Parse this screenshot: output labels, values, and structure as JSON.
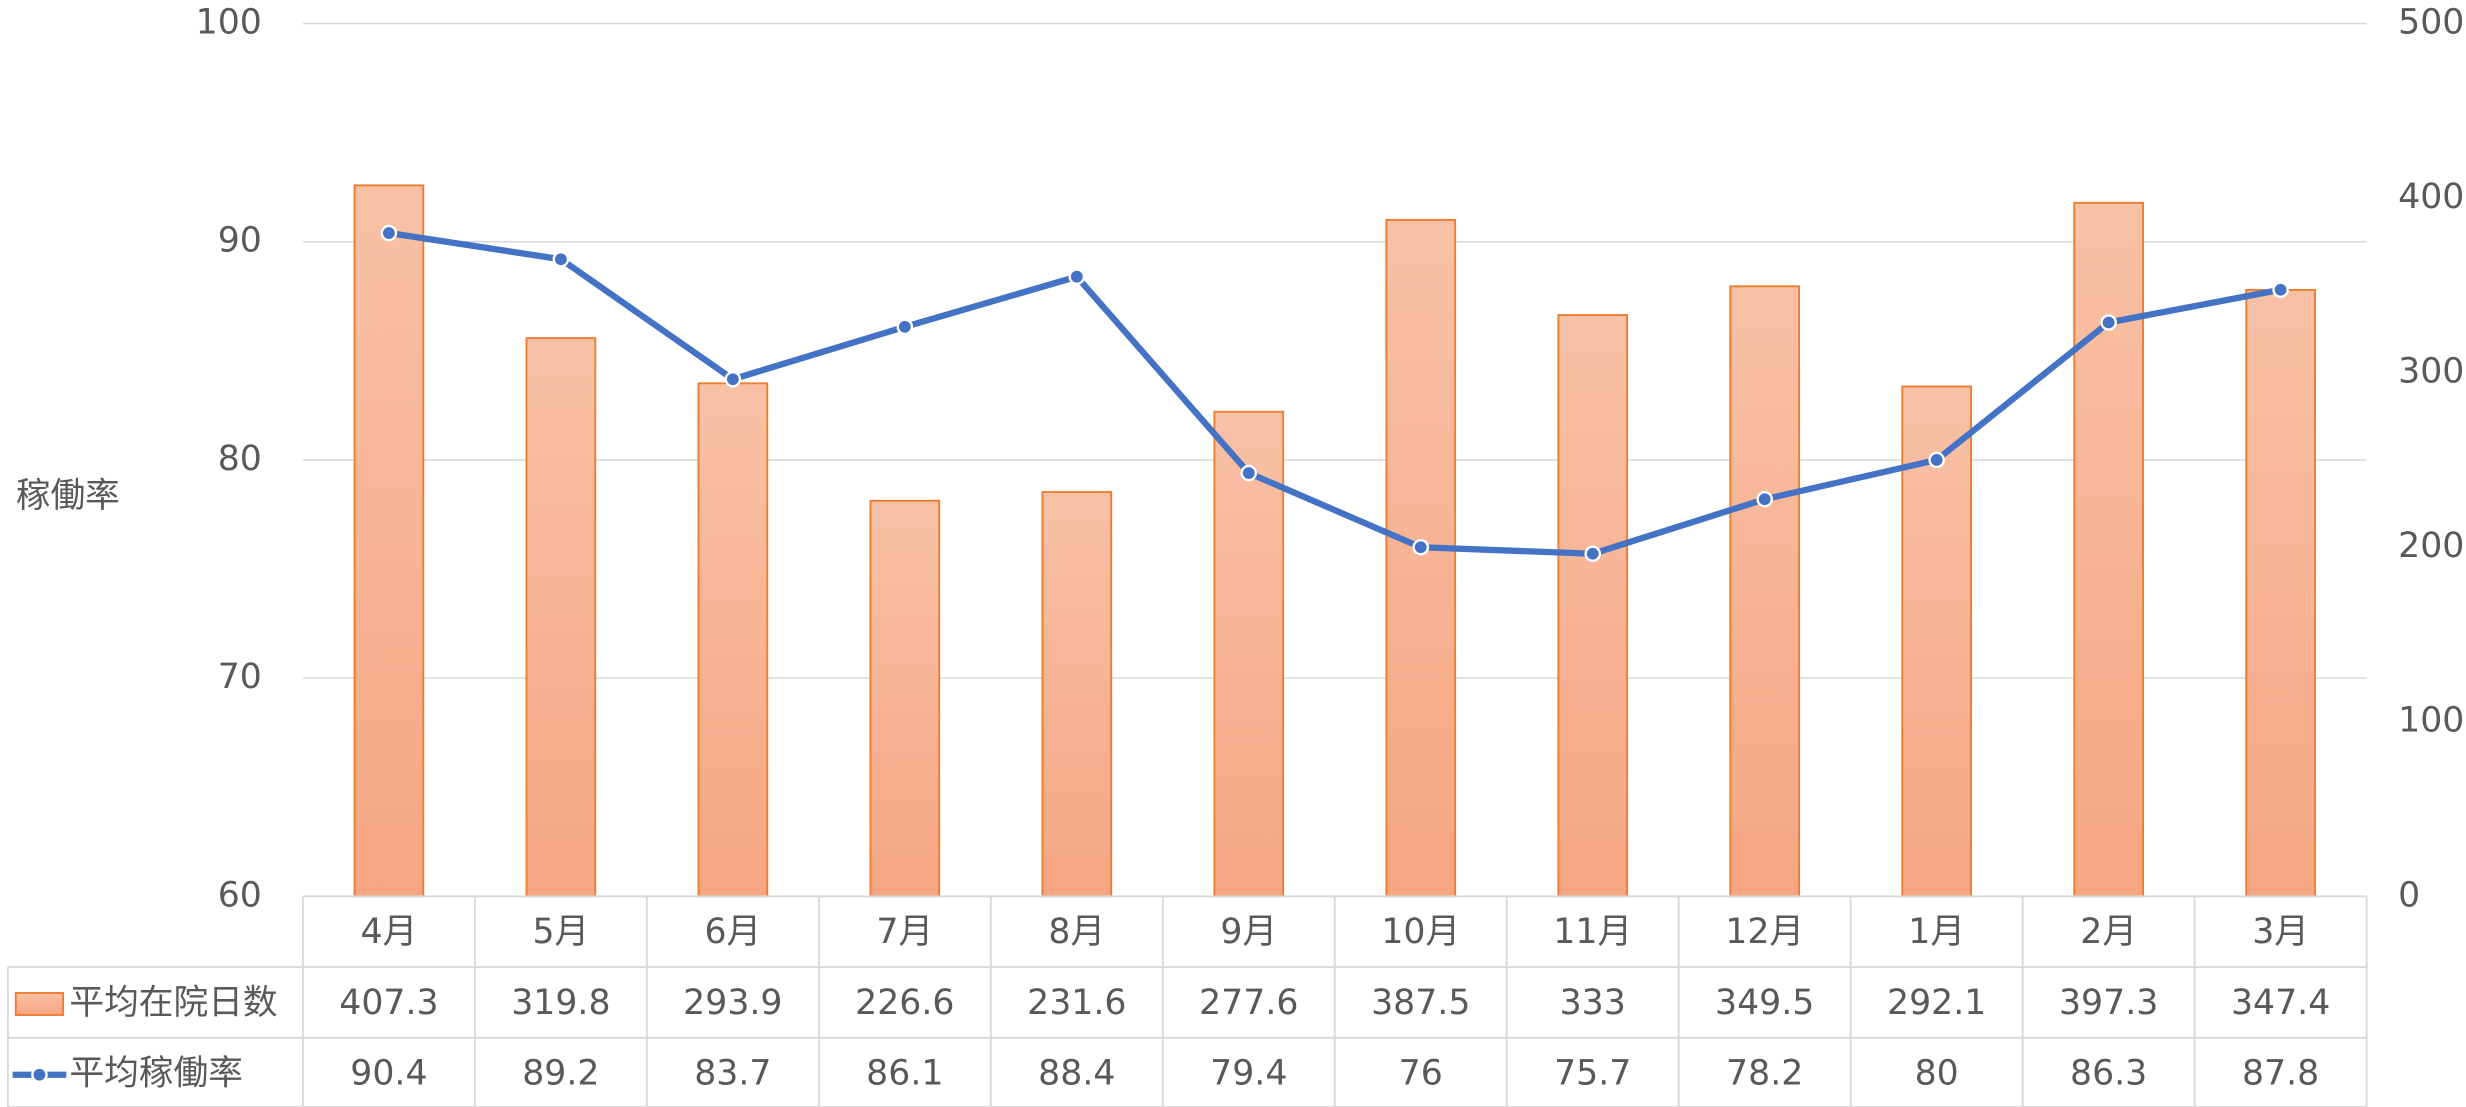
{
  "chart_data": {
    "type": "combo",
    "ylabel": "稼働率",
    "categories": [
      "4月",
      "5月",
      "6月",
      "7月",
      "8月",
      "9月",
      "10月",
      "11月",
      "12月",
      "1月",
      "2月",
      "3月"
    ],
    "series": [
      {
        "name": "平均在院日数",
        "type": "bar",
        "axis": "y2",
        "color": "#ED7D31",
        "values": [
          407.3,
          319.8,
          293.9,
          226.6,
          231.6,
          277.6,
          387.5,
          333,
          349.5,
          292.1,
          397.3,
          347.4
        ]
      },
      {
        "name": "平均稼働率",
        "type": "line",
        "color": "#4472C4",
        "values": [
          90.4,
          89.2,
          83.7,
          86.1,
          88.4,
          79.4,
          76,
          75.7,
          78.2,
          80,
          86.3,
          87.8
        ]
      }
    ],
    "ylim": [
      60,
      100
    ],
    "yticks": [
      60,
      70,
      80,
      90,
      100
    ],
    "y2lim": [
      0,
      500
    ],
    "y2ticks": [
      0,
      100,
      200,
      300,
      400,
      500
    ],
    "grid": true,
    "data_table": true
  }
}
